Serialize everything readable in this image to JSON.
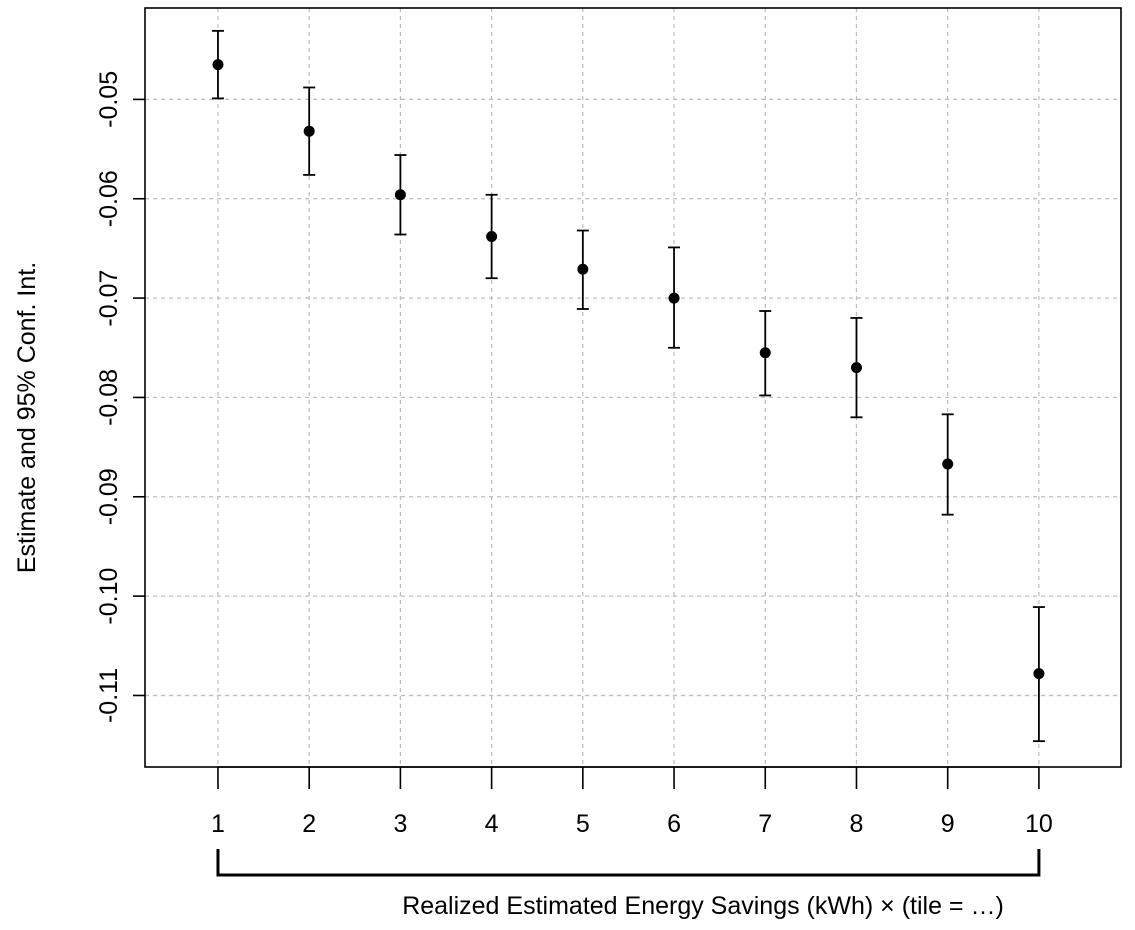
{
  "chart_data": {
    "type": "scatter",
    "subtype": "point estimates with 95% confidence interval error bars",
    "title": "",
    "xlabel": "Realized Estimated Energy Savings (kWh) × (tile = …)",
    "ylabel": "Estimate and 95% Conf. Int.",
    "x": [
      1,
      2,
      3,
      4,
      5,
      6,
      7,
      8,
      9,
      10
    ],
    "x_tick_labels": [
      "1",
      "2",
      "3",
      "4",
      "5",
      "6",
      "7",
      "8",
      "9",
      "10"
    ],
    "y_ticks": [
      -0.05,
      -0.06,
      -0.07,
      -0.08,
      -0.09,
      -0.1,
      -0.11
    ],
    "y_tick_labels": [
      "-0.05",
      "-0.06",
      "-0.07",
      "-0.08",
      "-0.09",
      "-0.10",
      "-0.11"
    ],
    "ylim": [
      -0.1172,
      -0.0408
    ],
    "xlim": [
      0.2,
      10.9
    ],
    "grid": true,
    "series": [
      {
        "estimate": [
          -0.0465,
          -0.0532,
          -0.0596,
          -0.0638,
          -0.0671,
          -0.07,
          -0.0755,
          -0.077,
          -0.0867,
          -0.1078
        ],
        "ci_lower": [
          -0.0499,
          -0.0576,
          -0.0636,
          -0.068,
          -0.0711,
          -0.075,
          -0.0798,
          -0.082,
          -0.0918,
          -0.1146
        ],
        "ci_upper": [
          -0.0431,
          -0.0488,
          -0.0556,
          -0.0596,
          -0.0632,
          -0.0649,
          -0.0713,
          -0.072,
          -0.0817,
          -0.1011
        ]
      }
    ],
    "bracket_span": [
      1,
      10
    ]
  }
}
